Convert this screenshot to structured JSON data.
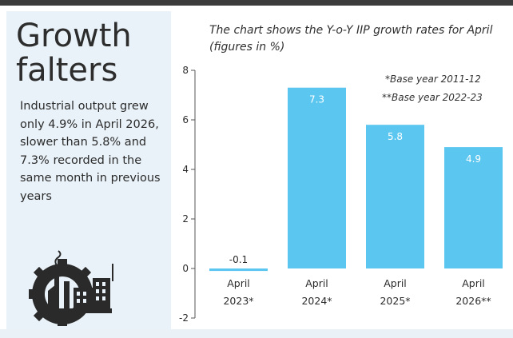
{
  "headline": "Growth falters",
  "body_text": "Industrial output grew only 4.9% in April 2026, slower than 5.8% and 7.3% recorded in the same month in previous years",
  "subtitle": "The chart shows the Y-o-Y IIP growth rates for April (figures in %)",
  "notes": [
    "*Base year 2011-12",
    "**Base year 2022-23"
  ],
  "icon": "factory-gear-icon",
  "colors": {
    "bar": "#5bc6ef",
    "panel": "#e9f2f8",
    "rule": "#3c3c3c",
    "icon": "#2a2a2a"
  },
  "chart_data": {
    "type": "bar",
    "title": "",
    "xlabel": "",
    "ylabel": "",
    "categories": [
      "April 2023*",
      "April 2024*",
      "April 2025*",
      "April 2026**"
    ],
    "category_lines": [
      [
        "April",
        "2023*"
      ],
      [
        "April",
        "2024*"
      ],
      [
        "April",
        "2025*"
      ],
      [
        "April",
        "2026**"
      ]
    ],
    "values": [
      -0.1,
      7.3,
      5.8,
      4.9
    ],
    "value_labels": [
      "-0.1",
      "7.3",
      "5.8",
      "4.9"
    ],
    "ylim": [
      -2,
      8
    ],
    "yticks": [
      -2,
      0,
      2,
      4,
      6,
      8
    ],
    "grid": false,
    "legend": "none"
  }
}
